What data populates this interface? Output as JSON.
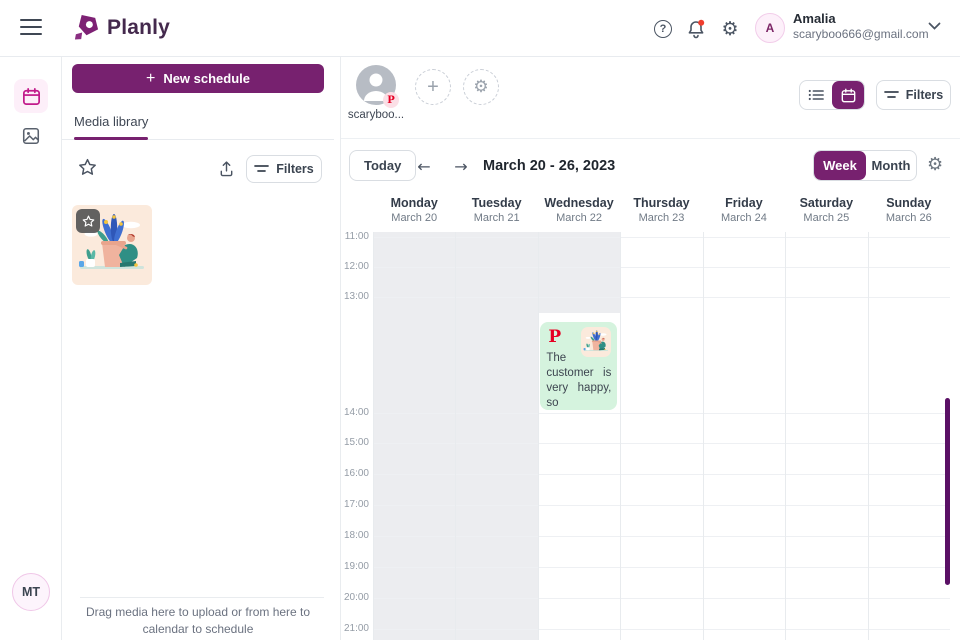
{
  "header": {
    "logo_text": "Planly",
    "user_name": "Amalia",
    "user_email": "scaryboo666@gmail.com",
    "avatar_initial": "A"
  },
  "sidebar": {
    "new_schedule": "New schedule",
    "media_library_tab": "Media library",
    "filters": "Filters",
    "drop_hint": "Drag media here to upload or from here to calendar to schedule",
    "workspace_initials": "MT"
  },
  "main": {
    "account_name": "scaryboo...",
    "filters": "Filters",
    "today": "Today",
    "date_range": "March 20 - 26, 2023",
    "week": "Week",
    "month": "Month"
  },
  "calendar": {
    "days": [
      {
        "name": "Monday",
        "date": "March 20",
        "shade": "full"
      },
      {
        "name": "Tuesday",
        "date": "March 21",
        "shade": "full"
      },
      {
        "name": "Wednesday",
        "date": "March 22",
        "shade": "partial"
      },
      {
        "name": "Thursday",
        "date": "March 23",
        "shade": "none"
      },
      {
        "name": "Friday",
        "date": "March 24",
        "shade": "none"
      },
      {
        "name": "Saturday",
        "date": "March 25",
        "shade": "none"
      },
      {
        "name": "Sunday",
        "date": "March 26",
        "shade": "none"
      }
    ],
    "times": [
      "11:00",
      "12:00",
      "13:00",
      "14:00",
      "15:00",
      "16:00",
      "17:00",
      "18:00",
      "19:00",
      "20:00",
      "21:00"
    ],
    "event": {
      "platform": "pinterest",
      "platform_initial": "P",
      "text": "The customer is very happy, so",
      "day_index": 2
    }
  },
  "icons": {
    "gear": "⚙",
    "plus": "+",
    "arrow_left": "←",
    "arrow_right": "→"
  },
  "colors": {
    "brand_purple": "#77216f",
    "rail_active_pink": "#c21a8b",
    "pinterest_red": "#e60023",
    "event_green": "#d5f3de",
    "shade_gray": "#ecedf0",
    "scrollbar_purple": "#5a1065",
    "avatar_pink": "#fdf0fa"
  }
}
